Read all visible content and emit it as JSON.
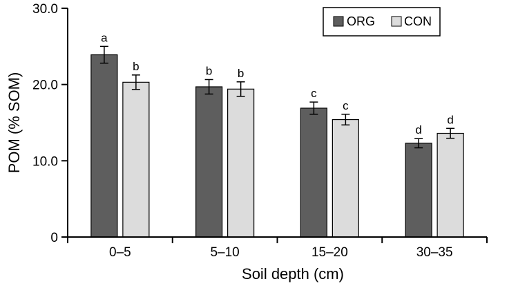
{
  "chart_data": {
    "type": "bar",
    "categories": [
      "0–5",
      "5–10",
      "15–20",
      "30–35"
    ],
    "series": [
      {
        "name": "ORG",
        "color": "#5e5e5e",
        "values": [
          23.9,
          19.7,
          16.9,
          12.3
        ],
        "errors": [
          1.1,
          0.95,
          0.8,
          0.6
        ],
        "letters": [
          "a",
          "b",
          "c",
          "d"
        ]
      },
      {
        "name": "CON",
        "color": "#dcdcdc",
        "values": [
          20.3,
          19.4,
          15.4,
          13.6
        ],
        "errors": [
          0.95,
          0.95,
          0.7,
          0.65
        ],
        "letters": [
          "b",
          "b",
          "c",
          "d"
        ]
      }
    ],
    "xlabel": "Soil depth (cm)",
    "ylabel": "POM (% SOM)",
    "ylim": [
      0,
      30
    ],
    "yticks": [
      0,
      10,
      20,
      30
    ],
    "ytick_labels": [
      "0",
      "10.0",
      "20.0",
      "30.0"
    ],
    "grid": false,
    "legend_position": "top-right"
  }
}
